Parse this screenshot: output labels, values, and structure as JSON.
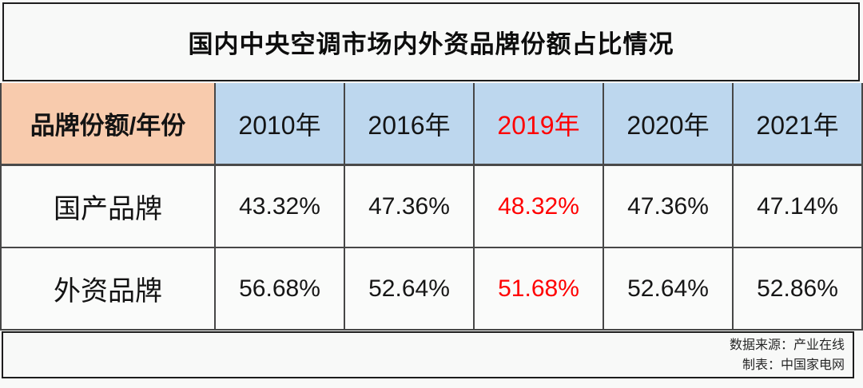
{
  "title": "国内中央空调市场内外资品牌份额占比情况",
  "table": {
    "corner_label": "品牌份额/年份",
    "year_headers": [
      "2010年",
      "2016年",
      "2019年",
      "2020年",
      "2021年"
    ],
    "rows": [
      {
        "label": "国产品牌",
        "values": [
          "43.32%",
          "47.36%",
          "48.32%",
          "47.36%",
          "47.14%"
        ]
      },
      {
        "label": "外资品牌",
        "values": [
          "56.68%",
          "52.64%",
          "51.68%",
          "52.64%",
          "52.86%"
        ]
      }
    ],
    "highlighted_column": "2019年"
  },
  "footer": {
    "source_line": "数据来源：产业在线",
    "credit_line": "制表：中国家电网"
  },
  "colors": {
    "corner_header_bg": "#F8CBAD",
    "year_header_bg": "#BDD7EE",
    "highlight_text": "#FF0000",
    "grid_border": "#474747",
    "box_border": "#1D1D1D",
    "page_bg": "#F8F9F8"
  },
  "chart_data": {
    "type": "table",
    "title": "国内中央空调市场内外资品牌份额占比情况",
    "columns": [
      "品牌份额/年份",
      "2010年",
      "2016年",
      "2019年",
      "2020年",
      "2021年"
    ],
    "rows": [
      [
        "国产品牌",
        "43.32%",
        "47.36%",
        "48.32%",
        "47.36%",
        "47.14%"
      ],
      [
        "外资品牌",
        "56.68%",
        "52.64%",
        "51.68%",
        "52.64%",
        "52.86%"
      ]
    ],
    "categories": [
      "2010年",
      "2016年",
      "2019年",
      "2020年",
      "2021年"
    ],
    "series": [
      {
        "name": "国产品牌",
        "values": [
          43.32,
          47.36,
          48.32,
          47.36,
          47.14
        ]
      },
      {
        "name": "外资品牌",
        "values": [
          56.68,
          52.64,
          51.68,
          52.64,
          52.86
        ]
      }
    ],
    "unit": "%",
    "highlighted_column": "2019年",
    "source": "数据来源：产业在线",
    "credit": "制表：中国家电网"
  }
}
